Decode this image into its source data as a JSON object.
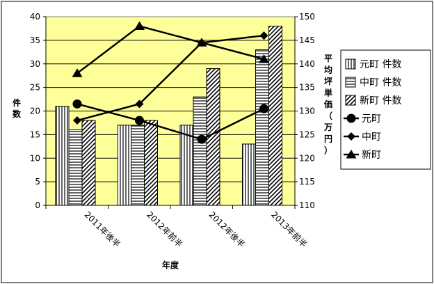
{
  "chart_data": {
    "type": "bar",
    "xlabel": "年度",
    "ylabel": "件数",
    "y2label": "平均坪単価（万円）",
    "categories": [
      "2011年後半",
      "2012年前半",
      "2012年後半",
      "2013年前半"
    ],
    "ylim": [
      0,
      40
    ],
    "y2lim": [
      110,
      150
    ],
    "yticks": [
      "0",
      "5",
      "10",
      "15",
      "20",
      "25",
      "30",
      "35",
      "40"
    ],
    "y2ticks": [
      "110",
      "115",
      "120",
      "125",
      "130",
      "135",
      "140",
      "145",
      "150"
    ],
    "grid": "horizontal",
    "legend_position": "right",
    "bar_series": [
      {
        "name": "元町 件数",
        "pattern": "vertical-lines",
        "values": [
          21,
          17,
          17,
          13
        ]
      },
      {
        "name": "中町 件数",
        "pattern": "horizontal-lines",
        "values": [
          16,
          17,
          23,
          33
        ]
      },
      {
        "name": "新町 件数",
        "pattern": "diagonal-lines",
        "values": [
          18,
          18,
          29,
          38
        ]
      }
    ],
    "line_series": [
      {
        "name": "元町",
        "marker": "circle",
        "values": [
          131.5,
          128,
          124,
          130.5
        ]
      },
      {
        "name": "中町",
        "marker": "diamond",
        "values": [
          128,
          131.5,
          144.5,
          146
        ]
      },
      {
        "name": "新町",
        "marker": "triangle",
        "values": [
          138,
          148,
          144.5,
          141
        ]
      }
    ],
    "colors": {
      "plot_background": "#ffff99",
      "line": "#000000",
      "bar_stroke": "#000000"
    }
  }
}
